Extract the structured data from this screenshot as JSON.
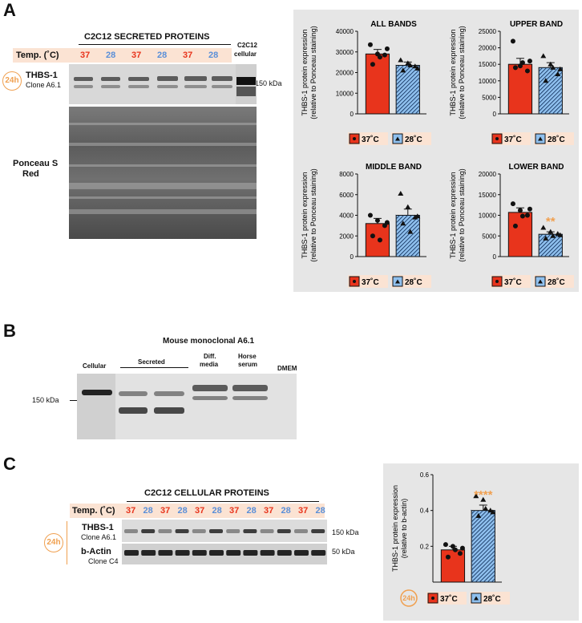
{
  "panels": {
    "a": "A",
    "b": "B",
    "c": "C"
  },
  "panel_a": {
    "header": "C2C12 SECRETED PROTEINS",
    "cellular_label_1": "C2C12",
    "cellular_label_2": "cellular",
    "temp_label": "Temp. (˚C)",
    "temps": [
      "37",
      "28",
      "37",
      "28",
      "37",
      "28"
    ],
    "badge": "24h",
    "protein": "THBS-1",
    "clone": "Clone A6.1",
    "marker": "150 kDa",
    "stain_1": "Ponceau S",
    "stain_2": "Red"
  },
  "panel_b": {
    "title": "Mouse monoclonal A6.1",
    "lanes": [
      "Cellular",
      "Secreted",
      "Diff. media",
      "Horse serum",
      "DMEM"
    ],
    "lane_diff_1": "Diff.",
    "lane_diff_2": "media",
    "lane_horse_1": "Horse",
    "lane_horse_2": "serum",
    "marker": "150 kDa"
  },
  "panel_c": {
    "header": "C2C12 CELLULAR PROTEINS",
    "temp_label": "Temp. (˚C)",
    "temps": [
      "37",
      "28",
      "37",
      "28",
      "37",
      "28",
      "37",
      "28",
      "37",
      "28",
      "37",
      "28"
    ],
    "badge": "24h",
    "protein": "THBS-1",
    "clone": "Clone A6.1",
    "actin": "b-Actin",
    "actin_clone": "Clone C4",
    "marker_150": "150 kDa",
    "marker_50": "50 kDa"
  },
  "colors": {
    "c37": "#e8341c",
    "c28": "#8fc0ee",
    "accent": "#f0a050",
    "label37": "#e8341c",
    "label28": "#5a8fd8"
  },
  "legend": {
    "l37": "37˚C",
    "l28": "28˚C"
  },
  "ylabel_a": [
    "THBS-1 protein expression",
    "(relative to Ponceau staining)"
  ],
  "ylabel_c": [
    "THBS-1 protein expression",
    "(relative to b-actin)"
  ],
  "chart_data": [
    {
      "type": "bar",
      "title": "ALL BANDS",
      "categories": [
        "37˚C",
        "28˚C"
      ],
      "values": [
        29000,
        23500
      ],
      "errors": [
        2200,
        1600
      ],
      "ylim": [
        0,
        40000
      ],
      "yticks": [
        0,
        10000,
        20000,
        30000,
        40000
      ],
      "points37": [
        33500,
        29000,
        28500,
        24000,
        27500,
        31500
      ],
      "points28": [
        26000,
        24500,
        23000,
        21000,
        23500,
        22000
      ],
      "significance": ""
    },
    {
      "type": "bar",
      "title": "UPPER BAND",
      "categories": [
        "37˚C",
        "28˚C"
      ],
      "values": [
        15000,
        14000
      ],
      "errors": [
        1800,
        1500
      ],
      "ylim": [
        0,
        25000
      ],
      "yticks": [
        0,
        5000,
        10000,
        15000,
        20000,
        25000
      ],
      "points37": [
        22000,
        14500,
        13000,
        14000,
        15500,
        16000
      ],
      "points28": [
        17500,
        15000,
        12000,
        10000,
        14000,
        13500
      ],
      "significance": ""
    },
    {
      "type": "bar",
      "title": "MIDDLE BAND",
      "categories": [
        "37˚C",
        "28˚C"
      ],
      "values": [
        3200,
        4000
      ],
      "errors": [
        500,
        600
      ],
      "ylim": [
        0,
        8000
      ],
      "yticks": [
        0,
        2000,
        4000,
        6000,
        8000
      ],
      "points37": [
        4000,
        3500,
        3000,
        2000,
        1600,
        3300
      ],
      "points28": [
        6100,
        4800,
        3800,
        3200,
        2400,
        3900
      ],
      "significance": ""
    },
    {
      "type": "bar",
      "title": "LOWER BAND",
      "categories": [
        "37˚C",
        "28˚C"
      ],
      "values": [
        10700,
        5400
      ],
      "errors": [
        1100,
        600
      ],
      "ylim": [
        0,
        20000
      ],
      "yticks": [
        0,
        5000,
        10000,
        15000,
        20000
      ],
      "points37": [
        12800,
        11200,
        10000,
        7400,
        9800,
        11500
      ],
      "points28": [
        7000,
        6000,
        5500,
        4400,
        5000,
        5200
      ],
      "significance": "**"
    },
    {
      "type": "bar",
      "title": "",
      "categories": [
        "37˚C",
        "28˚C"
      ],
      "values": [
        0.18,
        0.4
      ],
      "errors": [
        0.02,
        0.03
      ],
      "ylim": [
        0,
        0.6
      ],
      "yticks": [
        0.2,
        0.4,
        0.6
      ],
      "points37": [
        0.21,
        0.2,
        0.16,
        0.14,
        0.18,
        0.19
      ],
      "points28": [
        0.48,
        0.46,
        0.4,
        0.37,
        0.41,
        0.39
      ],
      "significance": "****"
    }
  ]
}
